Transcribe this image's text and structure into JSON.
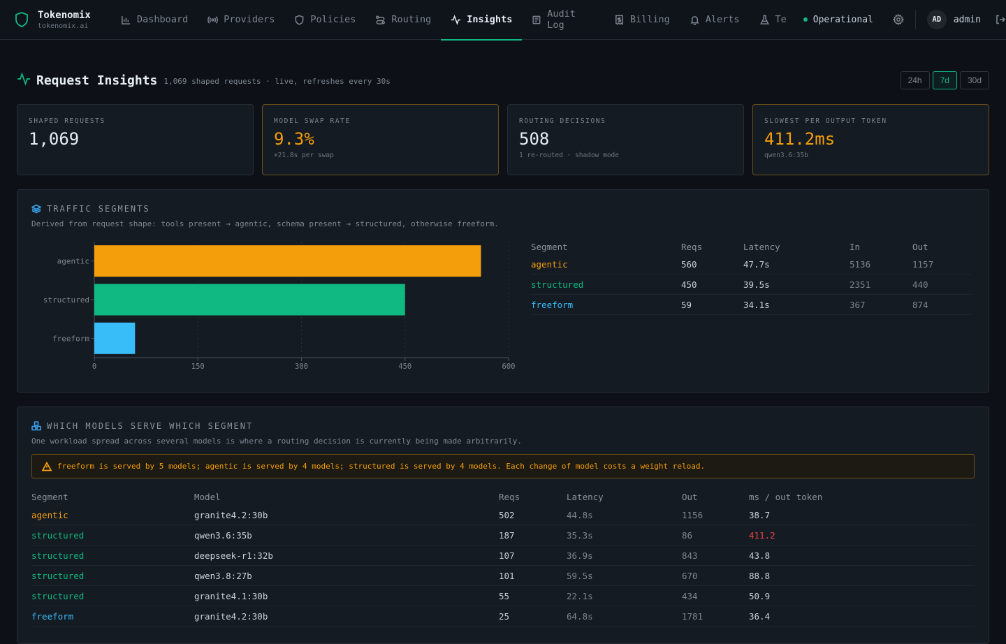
{
  "app": {
    "name": "Tokenomix",
    "domain": "tokenomix.ai"
  },
  "nav": [
    {
      "label": "Dashboard",
      "icon": "bar-chart-icon"
    },
    {
      "label": "Providers",
      "icon": "broadcast-icon"
    },
    {
      "label": "Policies",
      "icon": "shield-icon"
    },
    {
      "label": "Routing",
      "icon": "route-icon"
    },
    {
      "label": "Insights",
      "icon": "activity-icon",
      "active": true
    },
    {
      "label": "Audit Log",
      "icon": "log-icon"
    },
    {
      "label": "Billing",
      "icon": "receipt-icon"
    },
    {
      "label": "Alerts",
      "icon": "bell-icon"
    },
    {
      "label": "Te",
      "icon": "flask-icon"
    }
  ],
  "status": {
    "label": "Operational",
    "color": "#10b981"
  },
  "user": {
    "initials": "AD",
    "name": "admin"
  },
  "page": {
    "title": "Request Insights",
    "subtitle": "1,069 shaped requests · live, refreshes every 30s",
    "ranges": [
      "24h",
      "7d",
      "30d"
    ],
    "active_range": "7d"
  },
  "cards": [
    {
      "label": "SHAPED REQUESTS",
      "value": "1,069",
      "sub": ""
    },
    {
      "label": "MODEL SWAP RATE",
      "value": "9.3%",
      "sub": "+21.8s per swap"
    },
    {
      "label": "ROUTING DECISIONS",
      "value": "508",
      "sub": "1 re-routed · shadow mode"
    },
    {
      "label": "SLOWEST PER OUTPUT TOKEN",
      "value": "411.2ms",
      "sub": "qwen3.6:35b"
    }
  ],
  "segments_panel": {
    "title": "TRAFFIC SEGMENTS",
    "desc": "Derived from request shape: tools present → agentic, schema present → structured, otherwise freeform.",
    "columns": [
      "Segment",
      "Reqs",
      "Latency",
      "In",
      "Out"
    ],
    "rows": [
      {
        "segment": "agentic",
        "reqs": "560",
        "latency": "47.7s",
        "in": "5136",
        "out": "1157"
      },
      {
        "segment": "structured",
        "reqs": "450",
        "latency": "39.5s",
        "in": "2351",
        "out": "440"
      },
      {
        "segment": "freeform",
        "reqs": "59",
        "latency": "34.1s",
        "in": "367",
        "out": "874"
      }
    ]
  },
  "chart_data": {
    "type": "bar",
    "orientation": "horizontal",
    "categories": [
      "agentic",
      "structured",
      "freeform"
    ],
    "values": [
      560,
      450,
      59
    ],
    "colors": [
      "#f59e0b",
      "#10b981",
      "#38bdf8"
    ],
    "xticks": [
      "0",
      "150",
      "300",
      "450",
      "600"
    ],
    "xlim": [
      0,
      600
    ],
    "grid": true
  },
  "models_panel": {
    "title": "WHICH MODELS SERVE WHICH SEGMENT",
    "desc": "One workload spread across several models is where a routing decision is currently being made arbitrarily.",
    "warning": "freeform is served by 5 models; agentic is served by 4 models; structured is served by 4 models. Each change of model costs a weight reload.",
    "columns": [
      "Segment",
      "Model",
      "Reqs",
      "Latency",
      "Out",
      "ms / out token"
    ],
    "rows": [
      {
        "segment": "agentic",
        "model": "granite4.2:30b",
        "reqs": "502",
        "latency": "44.8s",
        "out": "1156",
        "ms": "38.7"
      },
      {
        "segment": "structured",
        "model": "qwen3.6:35b",
        "reqs": "187",
        "latency": "35.3s",
        "out": "86",
        "ms": "411.2",
        "flag": true
      },
      {
        "segment": "structured",
        "model": "deepseek-r1:32b",
        "reqs": "107",
        "latency": "36.9s",
        "out": "843",
        "ms": "43.8"
      },
      {
        "segment": "structured",
        "model": "qwen3.8:27b",
        "reqs": "101",
        "latency": "59.5s",
        "out": "670",
        "ms": "88.8"
      },
      {
        "segment": "structured",
        "model": "granite4.1:30b",
        "reqs": "55",
        "latency": "22.1s",
        "out": "434",
        "ms": "50.9"
      },
      {
        "segment": "freeform",
        "model": "granite4.2:30b",
        "reqs": "25",
        "latency": "64.8s",
        "out": "1781",
        "ms": "36.4"
      }
    ]
  }
}
